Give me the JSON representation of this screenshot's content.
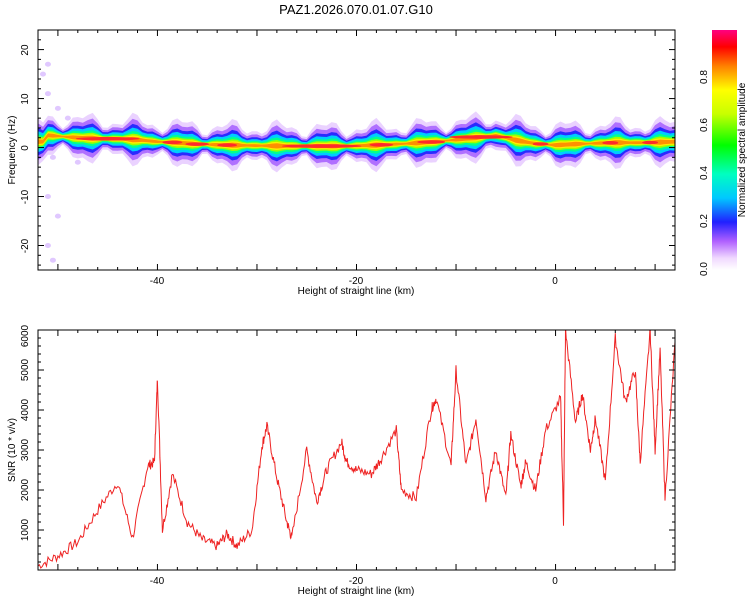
{
  "title": "PAZ1.2026.070.01.07.G10",
  "colors": {
    "snr_line": "#ee2222",
    "ridge_core": "#ff2a2a"
  },
  "chart_data": [
    {
      "type": "heatmap",
      "title": "PAZ1.2026.070.01.07.G10",
      "xlabel": "Height of straight line (km)",
      "ylabel": "Frequency (Hz)",
      "xlim": [
        -52,
        12
      ],
      "ylim": [
        -25,
        24
      ],
      "xticks": [
        "-40",
        "-20",
        "0"
      ],
      "yticks": [
        "20",
        "10",
        "0",
        "-10",
        "-20"
      ],
      "colorbar": {
        "label": "Normalized spectral amplitude",
        "range": [
          0,
          1
        ],
        "ticks": [
          "0.0",
          "0.2",
          "0.4",
          "0.6",
          "0.8"
        ]
      },
      "ridge": {
        "x": [
          -51,
          -48,
          -45,
          -42,
          -40,
          -38,
          -36,
          -33,
          -30,
          -27,
          -24,
          -21,
          -18,
          -15,
          -12,
          -9,
          -6,
          -4,
          -2,
          0,
          3,
          6,
          9,
          12
        ],
        "frequency_hz": [
          2.5,
          2.0,
          1.8,
          1.6,
          1.2,
          1.0,
          0.7,
          0.5,
          0.4,
          0.3,
          0.3,
          0.3,
          0.5,
          0.8,
          1.2,
          1.8,
          2.5,
          1.5,
          0.8,
          0.5,
          0.8,
          1.0,
          1.0,
          1.2
        ]
      }
    },
    {
      "type": "line",
      "xlabel": "Height of straight line (km)",
      "ylabel": "SNR (10 * v/v)",
      "xlim": [
        -52,
        12
      ],
      "ylim": [
        0,
        6000
      ],
      "xticks": [
        "-40",
        "-20",
        "0"
      ],
      "yticks": [
        "1000",
        "2000",
        "3000",
        "4000",
        "5000",
        "6000"
      ],
      "series": [
        {
          "name": "SNR",
          "x": [
            -52,
            -50,
            -48,
            -46,
            -44,
            -42.5,
            -41,
            -40.3,
            -40,
            -39.5,
            -38.5,
            -37,
            -35.5,
            -34,
            -33,
            -32,
            -30.5,
            -29.5,
            -29,
            -28,
            -27,
            -26.5,
            -25,
            -24,
            -23,
            -21.5,
            -21,
            -20,
            -18.5,
            -17.5,
            -16,
            -15.5,
            -14,
            -12.5,
            -12,
            -10.5,
            -10,
            -9,
            -8,
            -7,
            -6,
            -5,
            -4.5,
            -3.5,
            -3,
            -2,
            -1,
            0.5,
            0.8,
            1,
            2,
            2.7,
            3.5,
            4,
            5,
            6,
            7,
            8,
            8.5,
            9.5,
            10,
            10.5,
            11,
            12
          ],
          "values": [
            100,
            350,
            700,
            1500,
            2200,
            800,
            2600,
            2700,
            4800,
            1000,
            2400,
            1200,
            750,
            600,
            900,
            600,
            1000,
            3100,
            3600,
            2300,
            1200,
            800,
            3000,
            1700,
            2500,
            3200,
            2700,
            2500,
            2400,
            2800,
            3500,
            2000,
            1800,
            4000,
            4300,
            2600,
            5000,
            2600,
            3800,
            1800,
            3000,
            1800,
            3400,
            2100,
            2700,
            2000,
            3500,
            4300,
            1200,
            6000,
            3700,
            4400,
            3000,
            3800,
            2200,
            5800,
            4200,
            5000,
            2700,
            6000,
            3000,
            5500,
            1800,
            5700
          ]
        }
      ]
    }
  ]
}
